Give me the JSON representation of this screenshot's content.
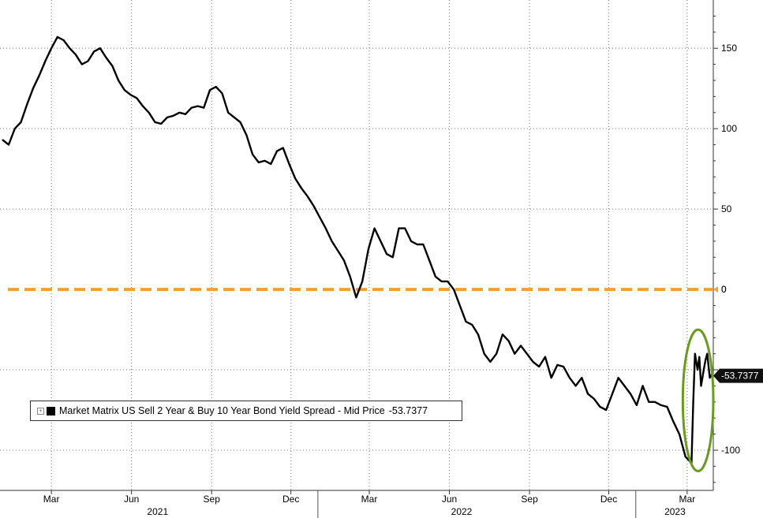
{
  "chart_data": {
    "type": "line",
    "title": "",
    "xlabel": "",
    "ylabel": "",
    "ylim": [
      -125,
      180
    ],
    "y_ticks": [
      150,
      100,
      50,
      0,
      -100
    ],
    "y_tick_labels": [
      "150",
      "100",
      "50",
      "0",
      "-100"
    ],
    "x_month_ticks": [
      "2021-03-01",
      "2021-06-01",
      "2021-09-01",
      "2021-12-01",
      "2022-03-01",
      "2022-06-01",
      "2022-09-01",
      "2022-12-01",
      "2023-03-01"
    ],
    "x_month_labels": [
      "Mar",
      "Jun",
      "Sep",
      "Dec",
      "Mar",
      "Jun",
      "Sep",
      "Dec",
      "Mar"
    ],
    "x_year_labels": [
      {
        "label": "2021",
        "date": "2021-07-01"
      },
      {
        "label": "2022",
        "date": "2022-06-15"
      },
      {
        "label": "2023",
        "date": "2023-02-15"
      }
    ],
    "x_range": [
      "2021-01-01",
      "2023-03-31"
    ],
    "grid": true,
    "legend": "bottom-left",
    "series": [
      {
        "name": "Market Matrix US Sell 2 Year & Buy 10 Year Bond Yield Spread - Mid Price",
        "color": "#000000",
        "last_value_label": "-53.7377",
        "x": [
          "2021-01-04",
          "2021-01-11",
          "2021-01-18",
          "2021-01-25",
          "2021-02-01",
          "2021-02-08",
          "2021-02-15",
          "2021-02-22",
          "2021-03-01",
          "2021-03-08",
          "2021-03-15",
          "2021-03-22",
          "2021-03-29",
          "2021-04-05",
          "2021-04-12",
          "2021-04-19",
          "2021-04-26",
          "2021-05-03",
          "2021-05-10",
          "2021-05-17",
          "2021-05-24",
          "2021-05-31",
          "2021-06-07",
          "2021-06-14",
          "2021-06-21",
          "2021-06-28",
          "2021-07-05",
          "2021-07-12",
          "2021-07-19",
          "2021-07-26",
          "2021-08-02",
          "2021-08-09",
          "2021-08-16",
          "2021-08-23",
          "2021-08-30",
          "2021-09-06",
          "2021-09-13",
          "2021-09-20",
          "2021-09-27",
          "2021-10-04",
          "2021-10-11",
          "2021-10-18",
          "2021-10-25",
          "2021-11-01",
          "2021-11-08",
          "2021-11-15",
          "2021-11-22",
          "2021-11-29",
          "2021-12-06",
          "2021-12-13",
          "2021-12-20",
          "2021-12-27",
          "2022-01-03",
          "2022-01-10",
          "2022-01-17",
          "2022-01-24",
          "2022-01-31",
          "2022-02-07",
          "2022-02-14",
          "2022-02-21",
          "2022-02-28",
          "2022-03-07",
          "2022-03-14",
          "2022-03-21",
          "2022-03-28",
          "2022-04-04",
          "2022-04-11",
          "2022-04-18",
          "2022-04-25",
          "2022-05-02",
          "2022-05-09",
          "2022-05-16",
          "2022-05-23",
          "2022-05-30",
          "2022-06-06",
          "2022-06-13",
          "2022-06-20",
          "2022-06-27",
          "2022-07-04",
          "2022-07-11",
          "2022-07-18",
          "2022-07-25",
          "2022-08-01",
          "2022-08-08",
          "2022-08-15",
          "2022-08-22",
          "2022-08-29",
          "2022-09-05",
          "2022-09-12",
          "2022-09-19",
          "2022-09-26",
          "2022-10-03",
          "2022-10-10",
          "2022-10-17",
          "2022-10-24",
          "2022-10-31",
          "2022-11-07",
          "2022-11-14",
          "2022-11-21",
          "2022-11-28",
          "2022-12-05",
          "2022-12-12",
          "2022-12-19",
          "2022-12-26",
          "2023-01-02",
          "2023-01-09",
          "2023-01-16",
          "2023-01-23",
          "2023-01-30",
          "2023-02-06",
          "2023-02-13",
          "2023-02-20",
          "2023-02-27",
          "2023-03-06",
          "2023-03-08",
          "2023-03-10",
          "2023-03-13",
          "2023-03-15",
          "2023-03-17",
          "2023-03-20",
          "2023-03-22",
          "2023-03-24",
          "2023-03-27",
          "2023-03-29",
          "2023-03-31"
        ],
        "values": [
          93,
          90,
          100,
          104,
          115,
          125,
          133,
          142,
          150,
          157,
          155,
          150,
          146,
          140,
          142,
          148,
          150,
          144,
          139,
          130,
          124,
          121,
          119,
          114,
          110,
          104,
          103,
          107,
          108,
          110,
          109,
          113,
          114,
          113,
          124,
          126,
          122,
          110,
          107,
          104,
          96,
          84,
          79,
          80,
          78,
          86,
          88,
          78,
          69,
          63,
          58,
          52,
          45,
          38,
          30,
          24,
          18,
          8,
          -5,
          5,
          25,
          38,
          30,
          22,
          20,
          38,
          38,
          30,
          28,
          28,
          18,
          8,
          5,
          5,
          0,
          -10,
          -20,
          -22,
          -28,
          -40,
          -45,
          -40,
          -28,
          -32,
          -40,
          -35,
          -40,
          -45,
          -48,
          -42,
          -55,
          -47,
          -48,
          -55,
          -60,
          -55,
          -65,
          -68,
          -73,
          -75,
          -65,
          -55,
          -60,
          -65,
          -72,
          -60,
          -70,
          -70,
          -72,
          -73,
          -82,
          -90,
          -104,
          -108,
          -70,
          -40,
          -50,
          -42,
          -60,
          -50,
          -44,
          -40,
          -55,
          -53,
          -53.7377
        ]
      }
    ],
    "reference_lines": [
      {
        "y": 0,
        "color": "#f0a030",
        "style": "dashed",
        "label": "0"
      }
    ],
    "annotations": [
      {
        "type": "ellipse",
        "color": "#6a9a1f",
        "x_range": [
          "2023-02-24",
          "2023-03-31"
        ],
        "y_range": [
          -113,
          -25
        ]
      }
    ]
  }
}
